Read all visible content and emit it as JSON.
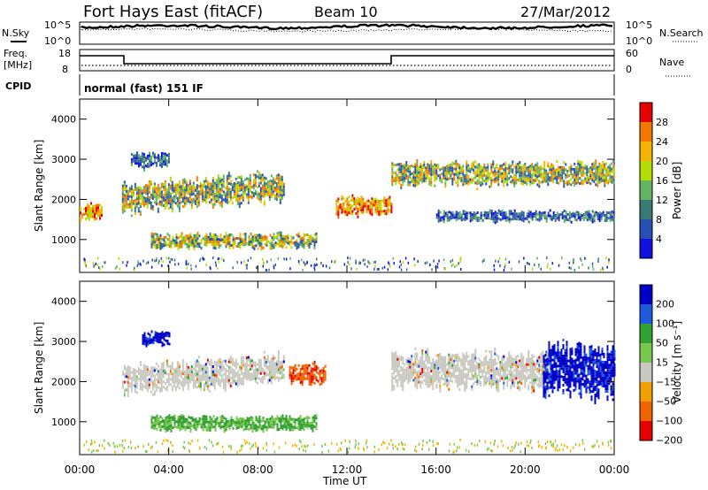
{
  "header": {
    "title": "Fort Hays East (fitACF)",
    "beam": "Beam 10",
    "date": "27/Mar/2012"
  },
  "top_panels": {
    "nsky_label": "N.Sky",
    "nsky_ticks": [
      "10^5",
      "10^0"
    ],
    "nsearch_label": "N.Search",
    "nsearch_ticks": [
      "10^5",
      "10^0"
    ],
    "freq_label_1": "Freq.",
    "freq_label_2": "[MHz]",
    "freq_ticks": [
      "18",
      "8"
    ],
    "nave_label": "Nave",
    "nave_ticks": [
      "60",
      "0"
    ],
    "cpid_label": "CPID",
    "cpid_text": "normal (fast) 151 IF"
  },
  "chart_data": [
    {
      "type": "heatmap",
      "name": "power",
      "ylabel": "Slant Range [km]",
      "xlabel": "",
      "xlim": [
        0,
        24
      ],
      "ylim": [
        180,
        4500
      ],
      "yticks": [
        "1000",
        "2000",
        "3000",
        "4000"
      ],
      "colorbar_label": "Power [dB]",
      "colorbar_ticks": [
        "28",
        "24",
        "20",
        "16",
        "12",
        "8",
        "4"
      ],
      "colorbar_colors": [
        "#e60000",
        "#f07800",
        "#f2b400",
        "#b4dc00",
        "#64b464",
        "#3c7878",
        "#2850b4",
        "#1010e0"
      ],
      "echo_regions": [
        {
          "t0": 0.0,
          "t1": 1.0,
          "r0": 1400,
          "r1": 2000,
          "level": "high"
        },
        {
          "t0": 1.9,
          "t1": 9.2,
          "r0": 1500,
          "r1": 2600,
          "level": "mid"
        },
        {
          "t0": 3.2,
          "t1": 10.6,
          "r0": 700,
          "r1": 1250,
          "level": "mid"
        },
        {
          "t0": 2.3,
          "t1": 4.0,
          "r0": 2700,
          "r1": 3300,
          "level": "low"
        },
        {
          "t0": 11.5,
          "t1": 14.0,
          "r0": 1500,
          "r1": 2200,
          "level": "high"
        },
        {
          "t0": 14.0,
          "t1": 24.0,
          "r0": 2200,
          "r1": 3100,
          "level": "mid"
        },
        {
          "t0": 16.0,
          "t1": 24.0,
          "r0": 1400,
          "r1": 1800,
          "level": "low"
        }
      ]
    },
    {
      "type": "heatmap",
      "name": "velocity",
      "ylabel": "Slant Range [km]",
      "xlabel": "Time UT",
      "xlim": [
        0,
        24
      ],
      "ylim": [
        180,
        4500
      ],
      "xticks": [
        "00:00",
        "04:00",
        "08:00",
        "12:00",
        "16:00",
        "20:00",
        "00:00"
      ],
      "yticks": [
        "1000",
        "2000",
        "3000",
        "4000"
      ],
      "colorbar_label": "Velocity [m s⁻¹]",
      "colorbar_ticks": [
        "200",
        "100",
        "50",
        "15",
        "−15",
        "−50",
        "−100",
        "−200"
      ],
      "colorbar_colors": [
        "#0000c8",
        "#1e5adc",
        "#32a032",
        "#78c850",
        "#c8c8c0",
        "#f0a000",
        "#f06400",
        "#e60000"
      ],
      "echo_regions": [
        {
          "t0": 1.9,
          "t1": 9.2,
          "r0": 1500,
          "r1": 2600,
          "v": "ground"
        },
        {
          "t0": 3.2,
          "t1": 10.6,
          "r0": 700,
          "r1": 1250,
          "v": "positive"
        },
        {
          "t0": 2.8,
          "t1": 4.0,
          "r0": 2800,
          "r1": 3400,
          "v": "strong-positive"
        },
        {
          "t0": 9.4,
          "t1": 11.0,
          "r0": 1800,
          "r1": 2600,
          "v": "negative"
        },
        {
          "t0": 14.0,
          "t1": 21.0,
          "r0": 1600,
          "r1": 3000,
          "v": "ground"
        },
        {
          "t0": 20.8,
          "t1": 24.0,
          "r0": 1300,
          "r1": 3300,
          "v": "strong-positive"
        }
      ]
    }
  ]
}
